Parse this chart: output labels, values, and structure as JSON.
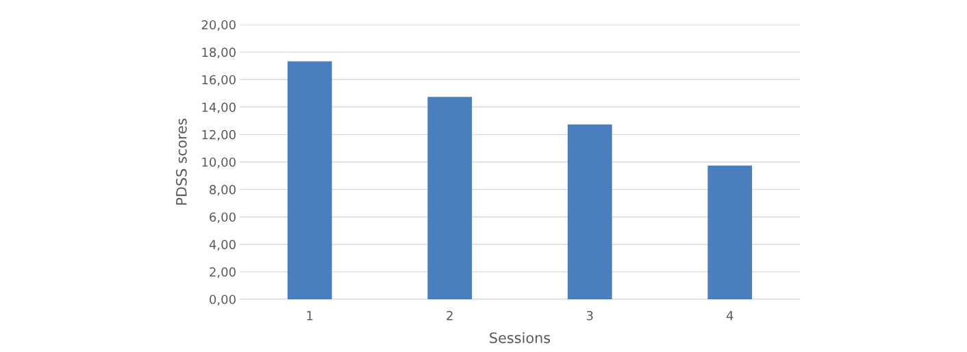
{
  "chart_data": {
    "type": "bar",
    "xlabel": "Sessions",
    "ylabel": "PDSS scores",
    "categories": [
      "1",
      "2",
      "3",
      "4"
    ],
    "values": [
      17.3,
      14.7,
      12.7,
      9.7
    ],
    "color": "#4a7ebf",
    "ylim": [
      0,
      20
    ],
    "yticks": [
      {
        "value": 0,
        "label": "0,00"
      },
      {
        "value": 2,
        "label": "2,00"
      },
      {
        "value": 4,
        "label": "4,00"
      },
      {
        "value": 6,
        "label": "6,00"
      },
      {
        "value": 8,
        "label": "8,00"
      },
      {
        "value": 10,
        "label": "10,00"
      },
      {
        "value": 12,
        "label": "12,00"
      },
      {
        "value": 14,
        "label": "14,00"
      },
      {
        "value": 16,
        "label": "16,00"
      },
      {
        "value": 18,
        "label": "18,00"
      },
      {
        "value": 20,
        "label": "20,00"
      }
    ],
    "grid": "y",
    "legend": false
  }
}
